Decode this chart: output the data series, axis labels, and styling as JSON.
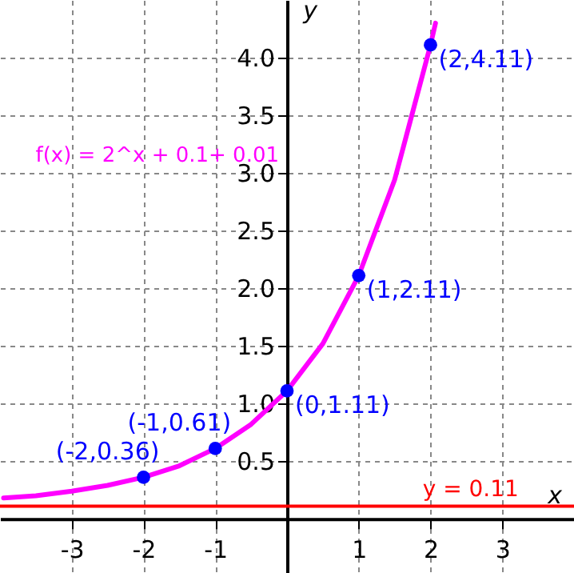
{
  "chart_data": {
    "type": "line",
    "xlabel": "x",
    "ylabel": "y",
    "xlim": [
      -4,
      4
    ],
    "ylim": [
      -0.47,
      4.5
    ],
    "xticks": [
      -3,
      -2,
      -1,
      1,
      2,
      3
    ],
    "yticks": [
      0.5,
      {
        "value": 1,
        "label": "1.0"
      },
      1.5,
      {
        "value": 2,
        "label": "2.0"
      },
      2.5,
      {
        "value": 3,
        "label": "3.0"
      },
      3.5,
      {
        "value": 4,
        "label": "4.0"
      }
    ],
    "grid": true,
    "series": [
      {
        "color": "#ff00ff",
        "marker": "none",
        "line_style": "solid",
        "x": [
          -3.95,
          -3.5,
          -3,
          -2.5,
          -2,
          -1.5,
          -1,
          -0.5,
          0,
          0.5,
          1,
          1.5,
          2,
          2.07
        ],
        "values": [
          0.18,
          0.2,
          0.24,
          0.29,
          0.36,
          0.46,
          0.61,
          0.82,
          1.11,
          1.52,
          2.11,
          2.94,
          4.11,
          4.3
        ]
      },
      {
        "type": "scatter",
        "color": "#0000ff",
        "marker": "circle",
        "x": [
          -2,
          -1,
          0,
          1,
          2
        ],
        "values": [
          0.36,
          0.61,
          1.11,
          2.11,
          4.11
        ],
        "value_labels": [
          "(-2,0.36)",
          "(-1,0.61)",
          "(0,1.11)",
          "(1,2.11)",
          "(2,4.11)"
        ]
      }
    ],
    "ref_lines": [
      {
        "axis": "y",
        "value": 0.11,
        "label": "y = 0.11",
        "color": "#ff0000"
      }
    ],
    "annotations": [
      "f(x) = 2^x + 0.1+ 0.01"
    ]
  }
}
